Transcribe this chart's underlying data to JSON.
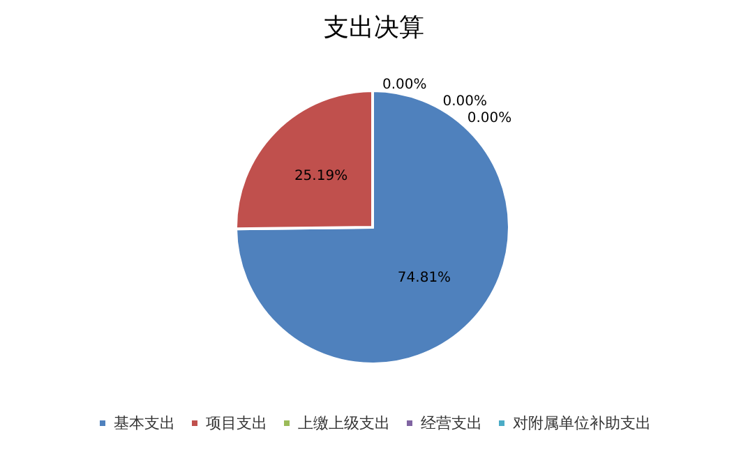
{
  "chart_data": {
    "type": "pie",
    "title": "支出决算",
    "categories": [
      "基本支出",
      "项目支出",
      "上缴上级支出",
      "经营支出",
      "对附属单位补助支出"
    ],
    "values": [
      74.81,
      25.19,
      0,
      0,
      0
    ],
    "value_labels": [
      "74.81%",
      "25.19%",
      "0.00%",
      "0.00%",
      "0.00%"
    ],
    "colors": [
      "#4f81bd",
      "#c0504d",
      "#9bbb59",
      "#8064a2",
      "#4bacc6"
    ],
    "legend": "bottom"
  }
}
